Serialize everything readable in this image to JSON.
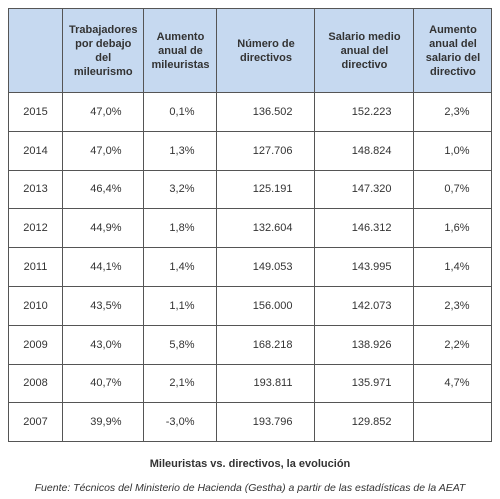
{
  "table": {
    "header": [
      "Trabajadores por debajo del mileurismo",
      "Aumento anual de mileuristas",
      "Número de directivos",
      "Salario medio anual del directivo",
      "Aumento anual del salario del directivo"
    ],
    "rows": [
      [
        "2015",
        "47,0%",
        "0,1%",
        "136.502",
        "152.223",
        "2,3%"
      ],
      [
        "2014",
        "47,0%",
        "1,3%",
        "127.706",
        "148.824",
        "1,0%"
      ],
      [
        "2013",
        "46,4%",
        "3,2%",
        "125.191",
        "147.320",
        "0,7%"
      ],
      [
        "2012",
        "44,9%",
        "1,8%",
        "132.604",
        "146.312",
        "1,6%"
      ],
      [
        "2011",
        "44,1%",
        "1,4%",
        "149.053",
        "143.995",
        "1,4%"
      ],
      [
        "2010",
        "43,5%",
        "1,1%",
        "156.000",
        "142.073",
        "2,3%"
      ],
      [
        "2009",
        "43,0%",
        "5,8%",
        "168.218",
        "138.926",
        "2,2%"
      ],
      [
        "2008",
        "40,7%",
        "2,1%",
        "193.811",
        "135.971",
        "4,7%"
      ],
      [
        "2007",
        "39,9%",
        "-3,0%",
        "193.796",
        "129.852"
      ]
    ]
  },
  "caption": "Mileuristas vs. directivos, la evolución",
  "source": "Fuente: Técnicos del Ministerio de Hacienda (Gestha) a partir de las estadísticas de la AEAT"
}
